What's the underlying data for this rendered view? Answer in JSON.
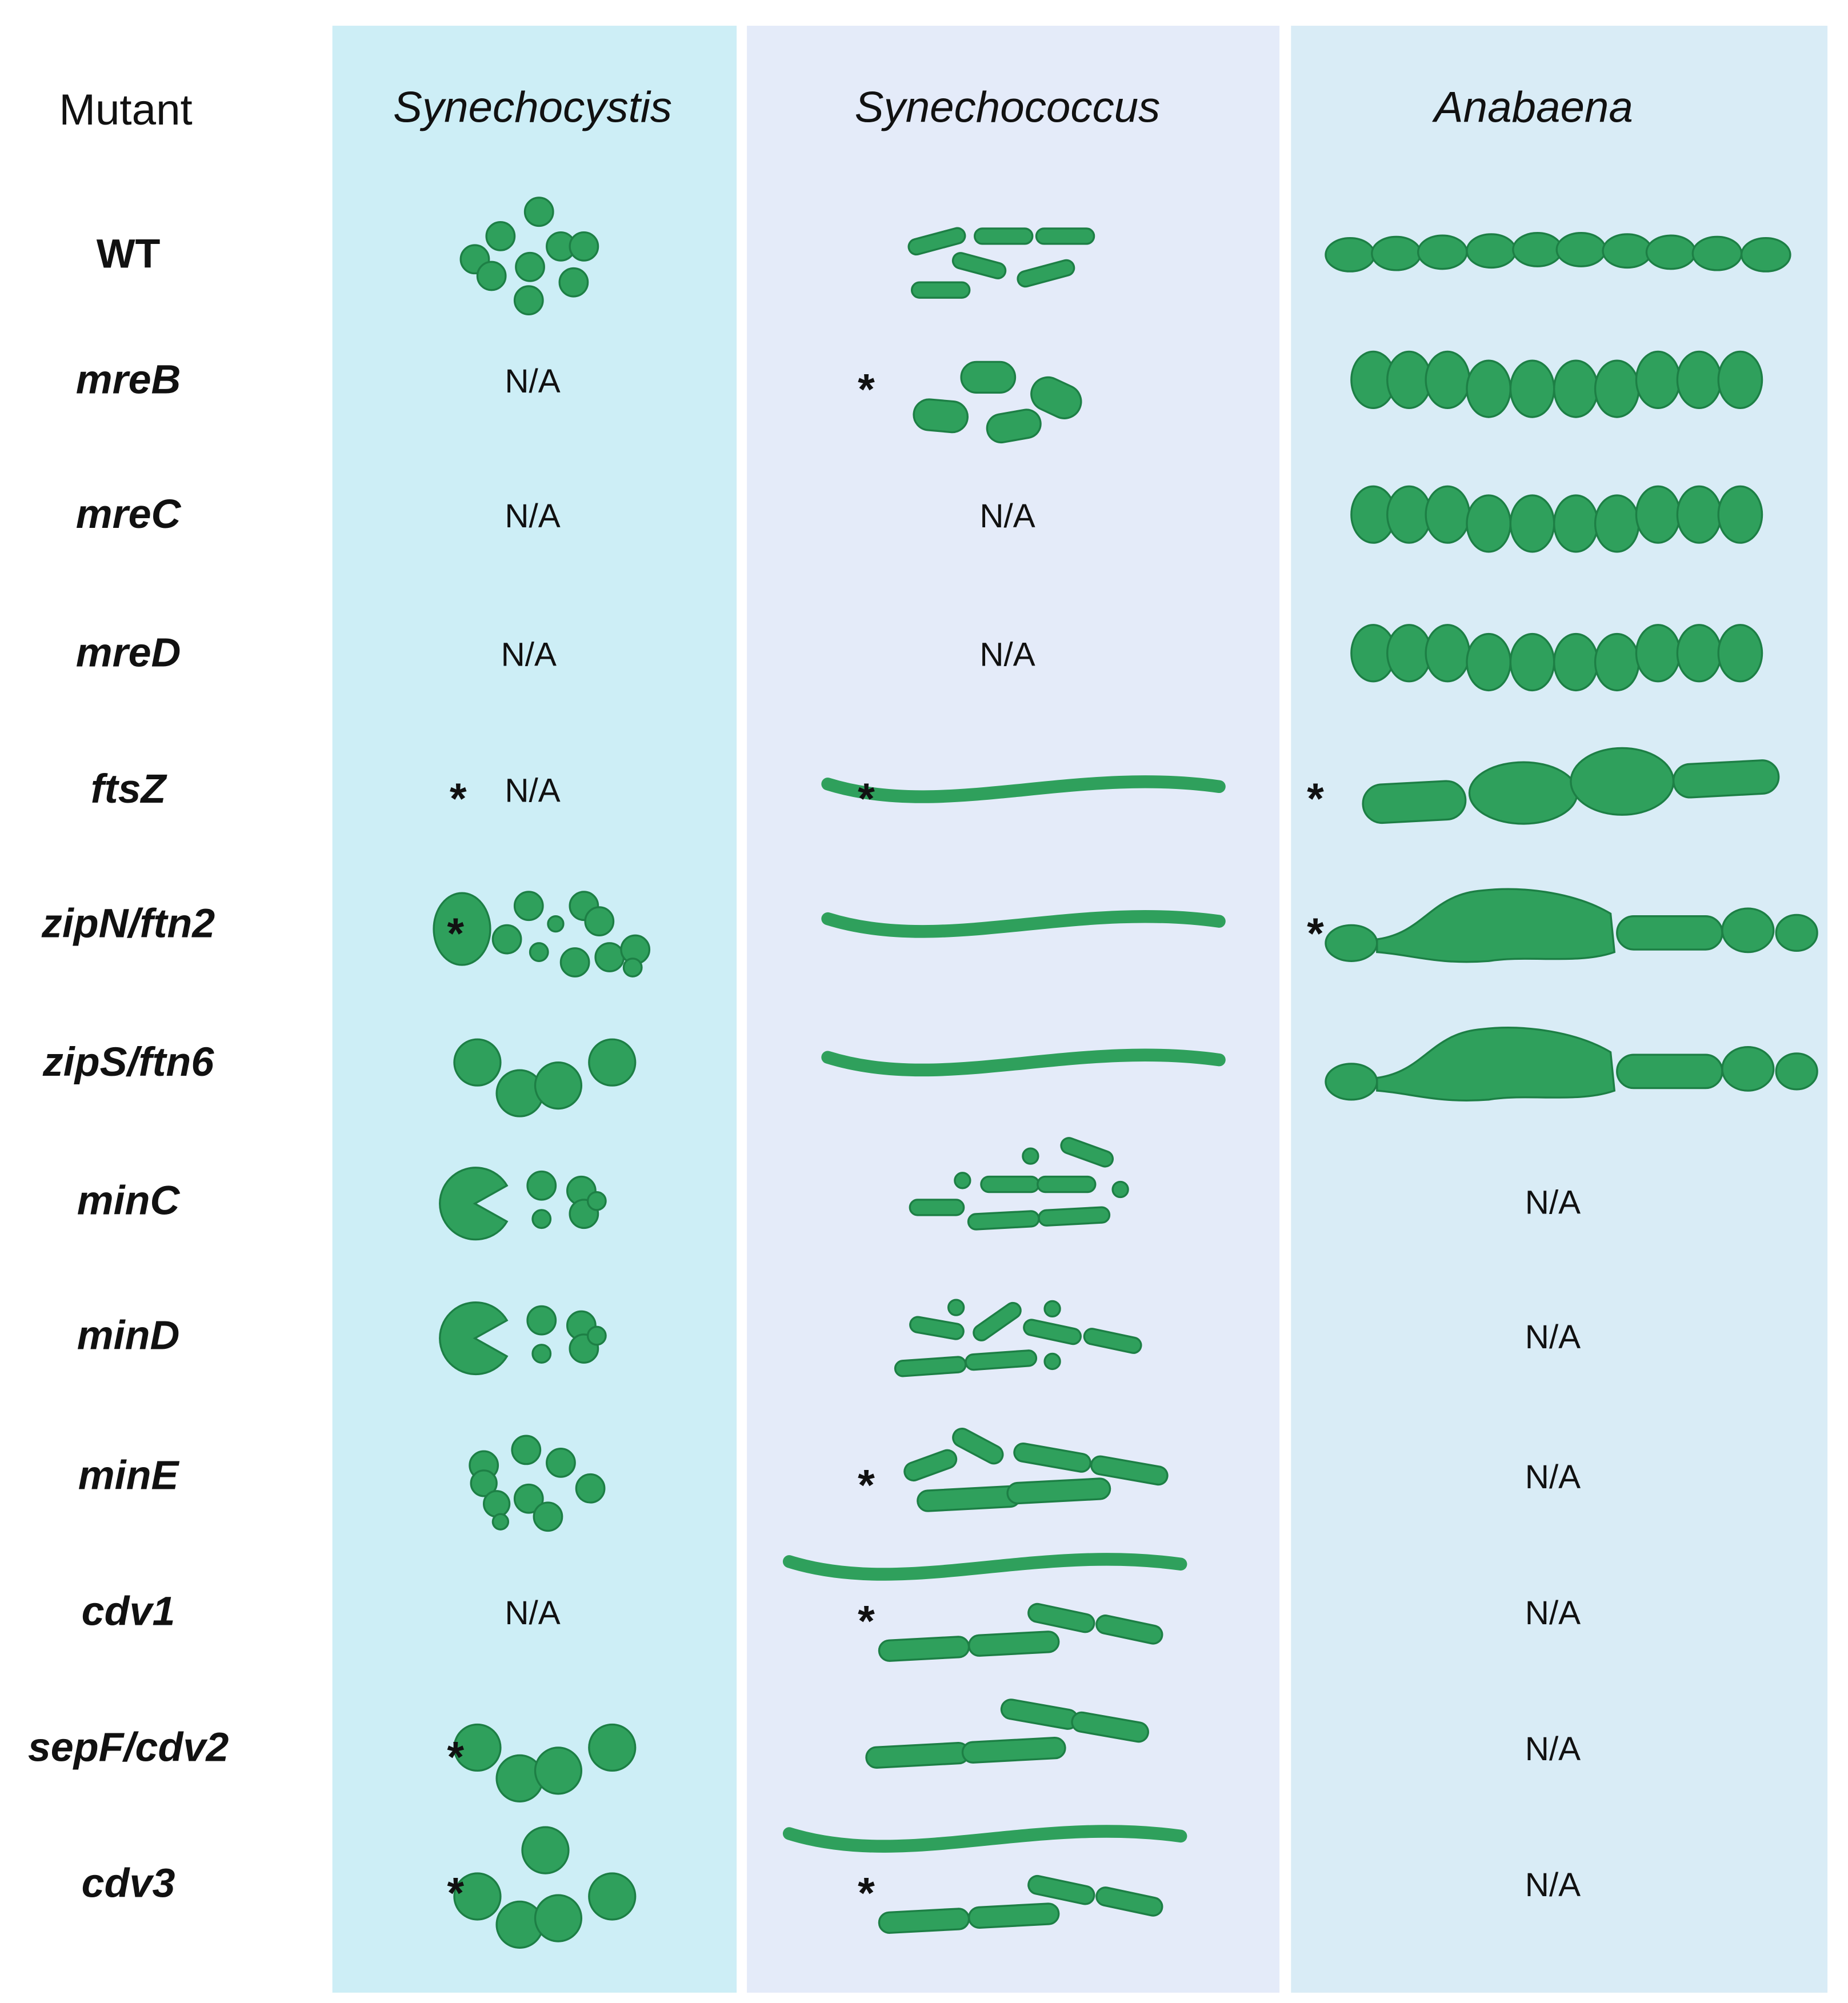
{
  "header": {
    "mutant": "Mutant",
    "organisms": [
      "Synechocystis",
      "Synechococcus",
      "Anabaena"
    ]
  },
  "rows": [
    {
      "mutant": "WT",
      "cells": [
        null,
        null,
        null
      ]
    },
    {
      "mutant": "mreB",
      "cells": [
        {
          "text": "N/A"
        },
        {
          "note": "*"
        },
        null
      ]
    },
    {
      "mutant": "mreC",
      "cells": [
        {
          "text": "N/A"
        },
        {
          "text": "N/A"
        },
        null
      ]
    },
    {
      "mutant": "mreD",
      "cells": [
        {
          "text": "N/A"
        },
        {
          "text": "N/A"
        },
        null
      ]
    },
    {
      "mutant": "ftsZ",
      "cells": [
        {
          "note": "*",
          "text": "N/A"
        },
        {
          "note": "*"
        },
        {
          "note": "*"
        }
      ]
    },
    {
      "mutant": "zipN/ftn2",
      "cells": [
        {
          "note": "*"
        },
        null,
        {
          "note": "*"
        }
      ]
    },
    {
      "mutant": "zipS/ftn6",
      "cells": [
        null,
        null,
        null
      ]
    },
    {
      "mutant": "minC",
      "cells": [
        null,
        null,
        {
          "text": "N/A"
        }
      ]
    },
    {
      "mutant": "minD",
      "cells": [
        null,
        null,
        {
          "text": "N/A"
        }
      ]
    },
    {
      "mutant": "minE",
      "cells": [
        null,
        {
          "note": "*"
        },
        {
          "text": "N/A"
        }
      ]
    },
    {
      "mutant": "cdv1",
      "cells": [
        {
          "text": "N/A"
        },
        {
          "note": "*"
        },
        {
          "text": "N/A"
        }
      ]
    },
    {
      "mutant": "sepF/cdv2",
      "cells": [
        {
          "note": "*"
        },
        null,
        {
          "text": "N/A"
        }
      ]
    },
    {
      "mutant": "cdv3",
      "cells": [
        {
          "note": "*"
        },
        {
          "note": "*"
        },
        {
          "text": "N/A"
        }
      ]
    }
  ]
}
